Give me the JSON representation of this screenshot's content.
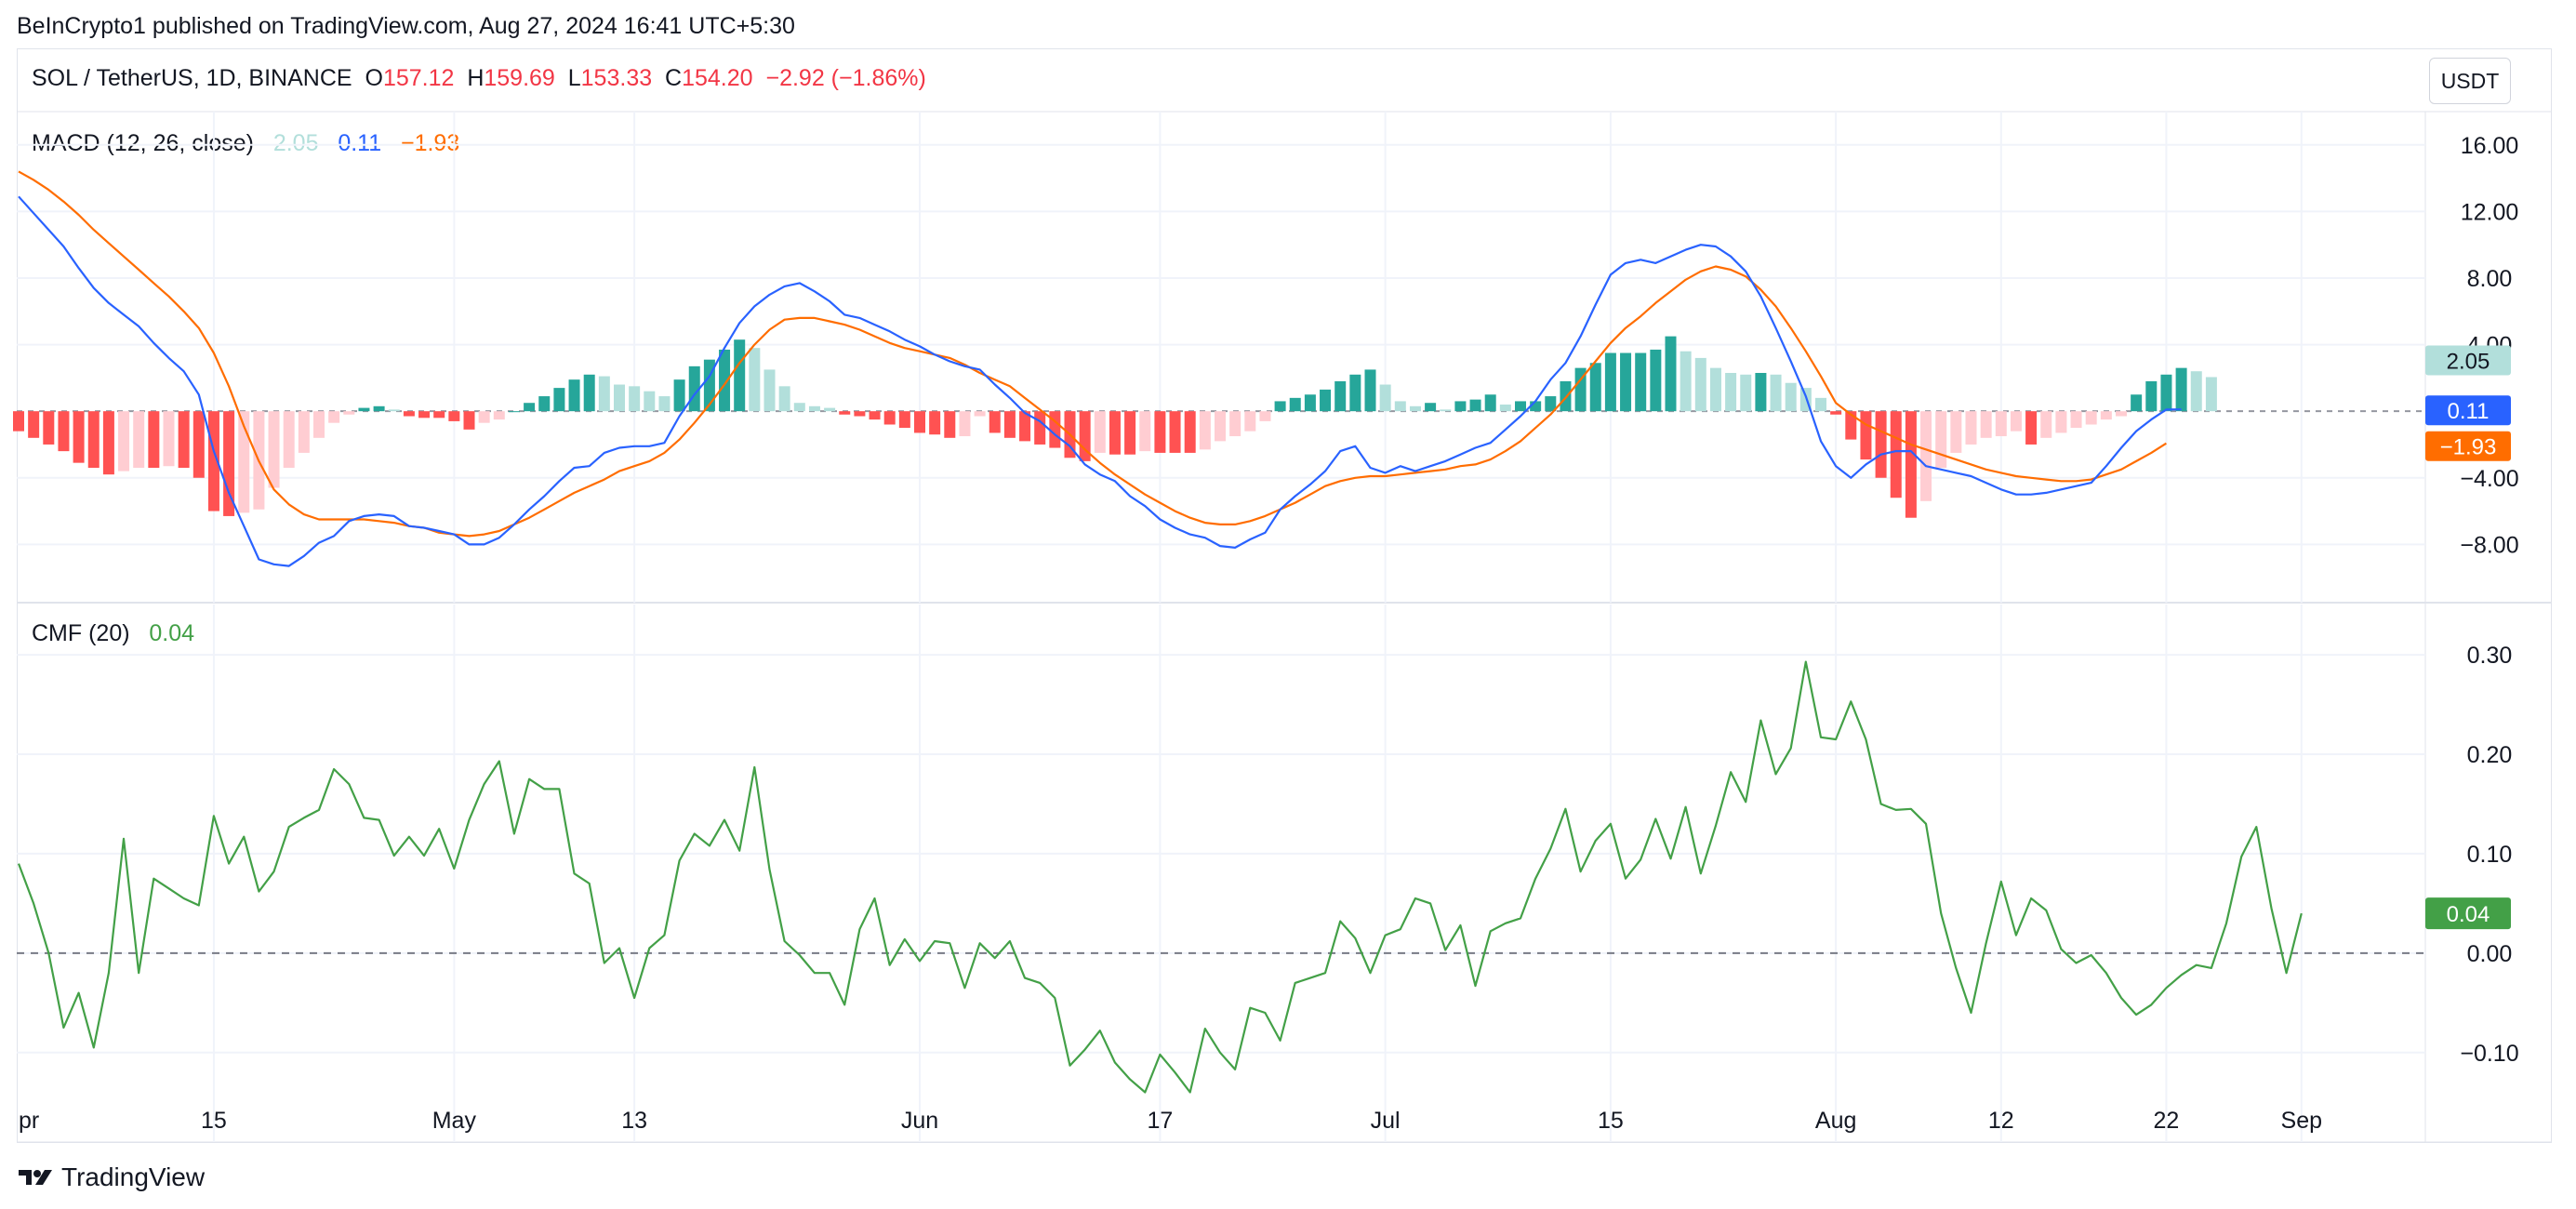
{
  "header": {
    "publisher": "BeInCrypto1 published on TradingView.com, Aug 27, 2024 16:41 UTC+5:30",
    "symbol": "SOL / TetherUS, 1D, BINANCE",
    "open_label": "O",
    "open": "157.12",
    "high_label": "H",
    "high": "159.69",
    "low_label": "L",
    "low": "153.33",
    "close_label": "C",
    "close": "154.20",
    "change": "−2.92 (−1.86%)",
    "currency": "USDT"
  },
  "footer": {
    "brand": "TradingView"
  },
  "colors": {
    "macd_line": "#2962ff",
    "signal_line": "#ff6d00",
    "hist_pos_strong": "#26a69a",
    "hist_pos_weak": "#b2dfdb",
    "hist_neg_strong": "#ff5252",
    "hist_neg_weak": "#ffcdd2",
    "cmf_line": "#43a047",
    "grid": "#f0f3fa",
    "text": "#131722"
  },
  "chart_data": [
    {
      "type": "line",
      "name": "MACD",
      "legend_label": "MACD (12, 26, close)",
      "legend_values": {
        "histogram": "2.05",
        "macd": "0.11",
        "signal": "−1.93"
      },
      "x_axis_labels": [
        "pr",
        "15",
        "May",
        "13",
        "Jun",
        "17",
        "Jul",
        "15",
        "Aug",
        "12",
        "22",
        "Sep"
      ],
      "x_axis_label_days": [
        -2,
        13,
        29,
        41,
        60,
        76,
        91,
        106,
        121,
        132,
        143,
        152
      ],
      "ylim": [
        -11.5,
        18
      ],
      "y_ticks": [
        "16.00",
        "12.00",
        "8.00",
        "4.00",
        "−4.00",
        "−8.00"
      ],
      "y_tick_values": [
        16,
        12,
        8,
        4,
        -4,
        -8
      ],
      "price_labels": [
        {
          "series": "histogram",
          "value": 2.05,
          "text": "2.05"
        },
        {
          "series": "macd",
          "value": 0.11,
          "text": "0.11"
        },
        {
          "series": "signal",
          "value": -1.93,
          "text": "−1.93"
        }
      ],
      "series": [
        {
          "name": "MACD",
          "key": "macd",
          "x_start_day": 0,
          "values": [
            12.9,
            11.9,
            10.9,
            9.9,
            8.6,
            7.4,
            6.5,
            5.8,
            5.1,
            4.1,
            3.2,
            2.4,
            1.0,
            -2.4,
            -4.9,
            -6.9,
            -8.9,
            -9.2,
            -9.3,
            -8.7,
            -7.9,
            -7.5,
            -6.6,
            -6.3,
            -6.2,
            -6.3,
            -6.9,
            -7.0,
            -7.2,
            -7.4,
            -8.0,
            -8.0,
            -7.6,
            -6.8,
            -5.9,
            -5.1,
            -4.2,
            -3.4,
            -3.3,
            -2.5,
            -2.2,
            -2.1,
            -2.1,
            -1.9,
            -0.3,
            1.0,
            2.1,
            3.8,
            5.3,
            6.3,
            7.0,
            7.5,
            7.7,
            7.2,
            6.6,
            5.8,
            5.6,
            5.2,
            4.8,
            4.3,
            3.9,
            3.4,
            3.0,
            2.7,
            2.5,
            1.6,
            0.8,
            -0.1,
            -0.6,
            -1.4,
            -2.1,
            -3.2,
            -3.8,
            -4.2,
            -5.1,
            -5.7,
            -6.5,
            -7.0,
            -7.4,
            -7.6,
            -8.1,
            -8.2,
            -7.7,
            -7.3,
            -5.9,
            -5.1,
            -4.4,
            -3.6,
            -2.4,
            -2.1,
            -3.4,
            -3.7,
            -3.3,
            -3.6,
            -3.3,
            -3.0,
            -2.6,
            -2.2,
            -1.9,
            -1.1,
            -0.3,
            0.6,
            1.9,
            2.9,
            4.5,
            6.4,
            8.2,
            8.9,
            9.1,
            8.9,
            9.3,
            9.7,
            10.0,
            9.9,
            9.3,
            8.4,
            6.9,
            5.0,
            3.0,
            0.9,
            -1.8,
            -3.3,
            -4.0,
            -3.2,
            -2.6,
            -2.4,
            -2.4,
            -3.3,
            -3.5,
            -3.7,
            -3.9,
            -4.3,
            -4.7,
            -5.0,
            -5.0,
            -4.9,
            -4.7,
            -4.5,
            -4.3,
            -3.3,
            -2.2,
            -1.2,
            -0.5,
            0.1,
            0.11
          ]
        },
        {
          "name": "Signal",
          "key": "signal",
          "x_start_day": 0,
          "values": [
            14.4,
            13.9,
            13.3,
            12.6,
            11.8,
            10.9,
            10.1,
            9.3,
            8.5,
            7.7,
            6.9,
            6.0,
            5.0,
            3.5,
            1.5,
            -0.9,
            -3.0,
            -4.7,
            -5.6,
            -6.2,
            -6.5,
            -6.5,
            -6.5,
            -6.5,
            -6.6,
            -6.7,
            -6.9,
            -7.0,
            -7.3,
            -7.4,
            -7.5,
            -7.4,
            -7.2,
            -6.8,
            -6.4,
            -5.9,
            -5.4,
            -4.9,
            -4.5,
            -4.1,
            -3.6,
            -3.3,
            -3.0,
            -2.5,
            -1.7,
            -0.7,
            0.4,
            1.6,
            2.9,
            4.0,
            4.9,
            5.5,
            5.6,
            5.6,
            5.4,
            5.2,
            4.9,
            4.5,
            4.1,
            3.8,
            3.6,
            3.4,
            3.2,
            2.8,
            2.3,
            1.9,
            1.5,
            0.8,
            0.1,
            -0.6,
            -1.4,
            -2.3,
            -3.1,
            -3.8,
            -4.4,
            -5.0,
            -5.5,
            -6.0,
            -6.4,
            -6.7,
            -6.8,
            -6.8,
            -6.6,
            -6.3,
            -5.9,
            -5.5,
            -5.0,
            -4.5,
            -4.2,
            -4.0,
            -3.9,
            -3.9,
            -3.8,
            -3.7,
            -3.6,
            -3.5,
            -3.3,
            -3.2,
            -2.9,
            -2.4,
            -1.8,
            -1.0,
            -0.2,
            0.8,
            1.9,
            3.0,
            4.1,
            5.0,
            5.7,
            6.5,
            7.2,
            7.9,
            8.4,
            8.7,
            8.5,
            8.1,
            7.3,
            6.3,
            5.0,
            3.6,
            2.1,
            0.5,
            -0.2,
            -0.8,
            -1.2,
            -1.6,
            -2.0,
            -2.3,
            -2.6,
            -2.9,
            -3.2,
            -3.5,
            -3.7,
            -3.9,
            -4.0,
            -4.1,
            -4.2,
            -4.2,
            -4.1,
            -3.8,
            -3.5,
            -3.0,
            -2.5,
            -1.93
          ]
        },
        {
          "name": "Histogram",
          "key": "histogram",
          "x_start_day": 0,
          "values": [
            -1.2,
            -1.6,
            -2.0,
            -2.4,
            -3.1,
            -3.4,
            -3.8,
            -3.6,
            -3.4,
            -3.4,
            -3.3,
            -3.4,
            -4.0,
            -6.0,
            -6.3,
            -6.1,
            -5.9,
            -4.6,
            -3.4,
            -2.5,
            -1.6,
            -0.7,
            -0.2,
            0.2,
            0.3,
            0.1,
            -0.3,
            -0.4,
            -0.4,
            -0.6,
            -1.1,
            -0.7,
            -0.5,
            0.0,
            0.5,
            0.9,
            1.4,
            1.9,
            2.2,
            2.1,
            1.6,
            1.5,
            1.2,
            0.9,
            1.9,
            2.7,
            3.1,
            3.7,
            4.3,
            3.8,
            2.5,
            1.5,
            0.5,
            0.3,
            0.2,
            -0.2,
            -0.3,
            -0.5,
            -0.8,
            -1.0,
            -1.3,
            -1.4,
            -1.6,
            -1.5,
            -0.3,
            -1.3,
            -1.6,
            -1.8,
            -2.0,
            -2.2,
            -2.8,
            -3.0,
            -2.5,
            -2.6,
            -2.6,
            -2.4,
            -2.5,
            -2.5,
            -2.5,
            -2.3,
            -1.8,
            -1.5,
            -1.2,
            -0.6,
            0.6,
            0.8,
            1.0,
            1.3,
            1.8,
            2.2,
            2.5,
            1.6,
            0.6,
            0.3,
            0.5,
            0.1,
            0.6,
            0.7,
            1.0,
            0.4,
            0.6,
            0.6,
            0.9,
            1.8,
            2.6,
            2.9,
            3.5,
            3.5,
            3.5,
            3.7,
            4.5,
            3.6,
            3.2,
            2.6,
            2.3,
            2.2,
            2.3,
            2.2,
            1.7,
            1.4,
            0.8,
            -0.2,
            -1.7,
            -2.9,
            -4.0,
            -5.2,
            -6.4,
            -5.4,
            -3.4,
            -2.5,
            -2.0,
            -1.6,
            -1.5,
            -1.2,
            -2.0,
            -1.6,
            -1.3,
            -1.0,
            -0.8,
            -0.5,
            -0.3,
            1.0,
            1.8,
            2.2,
            2.6,
            2.4,
            2.05
          ]
        }
      ]
    },
    {
      "type": "line",
      "name": "CMF",
      "legend_label": "CMF (20)",
      "legend_values": {
        "cmf": "0.04"
      },
      "ylim": [
        -0.19,
        0.33
      ],
      "y_ticks": [
        "0.30",
        "0.20",
        "0.10",
        "0.00",
        "−0.10"
      ],
      "y_tick_values": [
        0.3,
        0.2,
        0.1,
        0.0,
        -0.1
      ],
      "zero_line": 0.0,
      "price_labels": [
        {
          "series": "cmf",
          "value": 0.04,
          "text": "0.04"
        }
      ],
      "series": [
        {
          "name": "CMF",
          "key": "cmf",
          "x_start_day": 0,
          "values": [
            0.09,
            0.05,
            0.0,
            -0.075,
            -0.04,
            -0.095,
            -0.02,
            0.115,
            -0.02,
            0.075,
            0.065,
            0.055,
            0.048,
            0.138,
            0.09,
            0.117,
            0.062,
            0.082,
            0.127,
            0.136,
            0.144,
            0.185,
            0.17,
            0.136,
            0.134,
            0.098,
            0.117,
            0.098,
            0.125,
            0.085,
            0.134,
            0.17,
            0.193,
            0.12,
            0.175,
            0.165,
            0.165,
            0.08,
            0.07,
            -0.01,
            0.005,
            -0.045,
            0.005,
            0.018,
            0.093,
            0.12,
            0.108,
            0.134,
            0.103,
            0.187,
            0.084,
            0.012,
            -0.002,
            -0.02,
            -0.02,
            -0.052,
            0.024,
            0.055,
            -0.012,
            0.014,
            -0.008,
            0.012,
            0.01,
            -0.035,
            0.01,
            -0.005,
            0.012,
            -0.025,
            -0.03,
            -0.045,
            -0.113,
            -0.097,
            -0.078,
            -0.11,
            -0.127,
            -0.14,
            -0.102,
            -0.12,
            -0.14,
            -0.076,
            -0.1,
            -0.117,
            -0.055,
            -0.06,
            -0.088,
            -0.03,
            -0.025,
            -0.02,
            0.032,
            0.015,
            -0.02,
            0.018,
            0.024,
            0.055,
            0.05,
            0.003,
            0.028,
            -0.033,
            0.022,
            0.03,
            0.035,
            0.075,
            0.105,
            0.145,
            0.082,
            0.113,
            0.13,
            0.075,
            0.094,
            0.135,
            0.095,
            0.147,
            0.08,
            0.128,
            0.182,
            0.152,
            0.234,
            0.18,
            0.206,
            0.293,
            0.217,
            0.215,
            0.253,
            0.215,
            0.15,
            0.144,
            0.145,
            0.13,
            0.04,
            -0.015,
            -0.06,
            0.01,
            0.072,
            0.018,
            0.055,
            0.043,
            0.004,
            -0.01,
            -0.002,
            -0.02,
            -0.045,
            -0.062,
            -0.052,
            -0.035,
            -0.022,
            -0.012,
            -0.015,
            0.03,
            0.097,
            0.127,
            0.045,
            -0.02,
            0.04
          ]
        }
      ]
    }
  ]
}
